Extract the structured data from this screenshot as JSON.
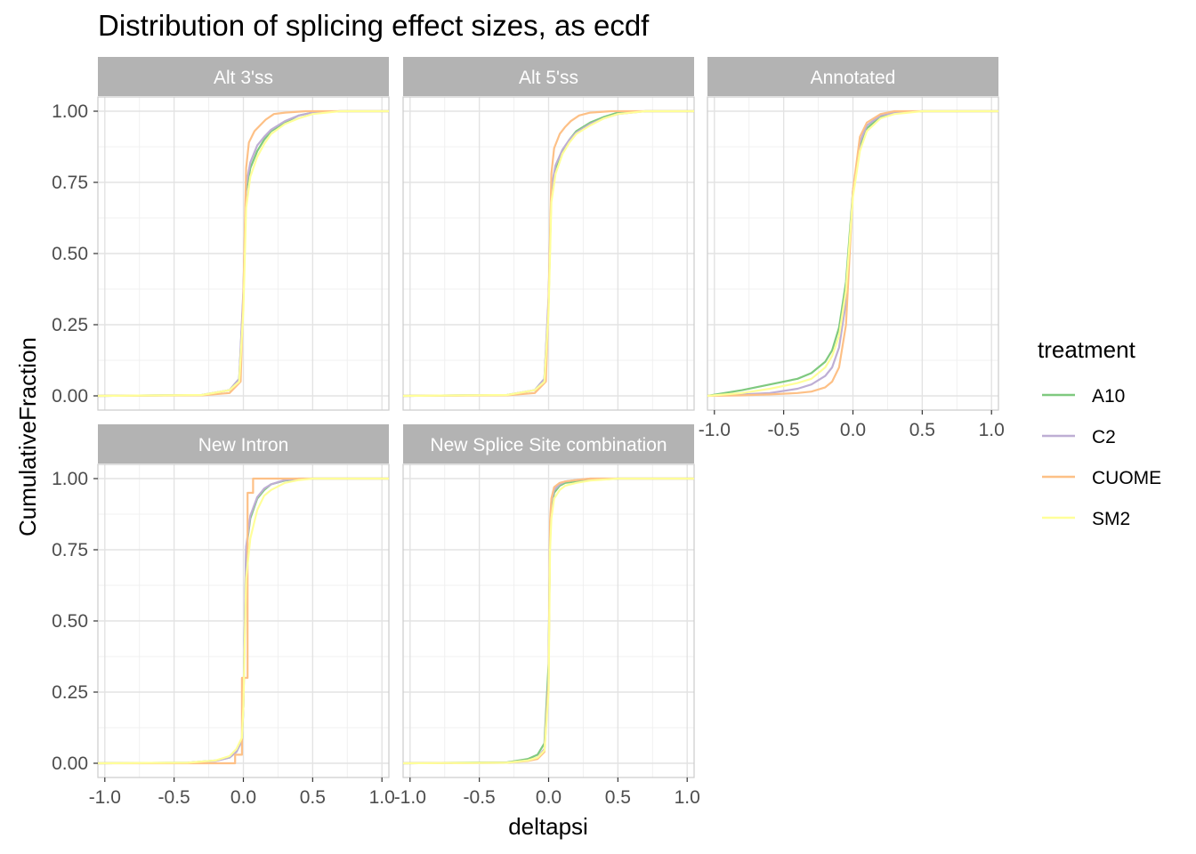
{
  "chart_data": {
    "type": "line",
    "title": "Distribution of splicing effect sizes, as ecdf",
    "xlabel": "deltapsi",
    "ylabel": "CumulativeFraction",
    "xlim": [
      -1.05,
      1.05
    ],
    "ylim": [
      -0.05,
      1.05
    ],
    "x_ticks": [
      -1.0,
      -0.5,
      0.0,
      0.5,
      1.0
    ],
    "x_tick_labels": [
      "-1.0",
      "-0.5",
      "0.0",
      "0.5",
      "1.0"
    ],
    "y_ticks": [
      0.0,
      0.25,
      0.5,
      0.75,
      1.0
    ],
    "y_tick_labels": [
      "0.00",
      "0.25",
      "0.50",
      "0.75",
      "1.00"
    ],
    "grid": true,
    "legend": {
      "title": "treatment",
      "position": "right",
      "entries": [
        {
          "name": "A10",
          "color": "#7FC97F"
        },
        {
          "name": "C2",
          "color": "#BEAED4"
        },
        {
          "name": "CUOME",
          "color": "#FDC086"
        },
        {
          "name": "SM2",
          "color": "#FFFF99"
        }
      ]
    },
    "panels": [
      {
        "label": "Alt 3'ss",
        "series": [
          {
            "name": "A10",
            "x": [
              -1.05,
              -0.3,
              -0.1,
              -0.03,
              0.0,
              0.02,
              0.05,
              0.1,
              0.15,
              0.2,
              0.3,
              0.4,
              0.5,
              0.7,
              1.05
            ],
            "y": [
              0.0,
              0.003,
              0.02,
              0.06,
              0.35,
              0.72,
              0.8,
              0.86,
              0.9,
              0.93,
              0.96,
              0.985,
              0.995,
              1.0,
              1.0
            ]
          },
          {
            "name": "C2",
            "x": [
              -1.05,
              -0.3,
              -0.1,
              -0.03,
              0.0,
              0.02,
              0.05,
              0.1,
              0.15,
              0.2,
              0.3,
              0.4,
              0.5,
              0.7,
              1.05
            ],
            "y": [
              0.0,
              0.003,
              0.02,
              0.06,
              0.37,
              0.74,
              0.82,
              0.88,
              0.91,
              0.935,
              0.965,
              0.985,
              0.995,
              1.0,
              1.0
            ]
          },
          {
            "name": "CUOME",
            "x": [
              -1.05,
              -0.3,
              -0.1,
              -0.02,
              0.0,
              0.02,
              0.04,
              0.08,
              0.12,
              0.16,
              0.22,
              0.3,
              0.45,
              0.6,
              1.05
            ],
            "y": [
              0.0,
              0.002,
              0.01,
              0.05,
              0.35,
              0.8,
              0.89,
              0.93,
              0.95,
              0.97,
              0.99,
              0.995,
              1.0,
              1.0,
              1.0
            ]
          },
          {
            "name": "SM2",
            "x": [
              -1.05,
              -0.3,
              -0.1,
              -0.03,
              0.0,
              0.02,
              0.05,
              0.1,
              0.15,
              0.2,
              0.3,
              0.4,
              0.5,
              0.7,
              1.05
            ],
            "y": [
              0.0,
              0.003,
              0.02,
              0.05,
              0.3,
              0.66,
              0.77,
              0.84,
              0.885,
              0.92,
              0.955,
              0.975,
              0.99,
              1.0,
              1.0
            ]
          }
        ]
      },
      {
        "label": "Alt 5'ss",
        "series": [
          {
            "name": "A10",
            "x": [
              -1.05,
              -0.3,
              -0.1,
              -0.03,
              0.0,
              0.02,
              0.05,
              0.1,
              0.15,
              0.2,
              0.3,
              0.4,
              0.5,
              0.7,
              1.05
            ],
            "y": [
              0.0,
              0.003,
              0.02,
              0.06,
              0.33,
              0.72,
              0.8,
              0.86,
              0.9,
              0.93,
              0.96,
              0.98,
              0.995,
              1.0,
              1.0
            ]
          },
          {
            "name": "C2",
            "x": [
              -1.05,
              -0.3,
              -0.1,
              -0.03,
              0.0,
              0.02,
              0.05,
              0.1,
              0.15,
              0.2,
              0.3,
              0.4,
              0.5,
              0.7,
              1.05
            ],
            "y": [
              0.0,
              0.003,
              0.02,
              0.06,
              0.35,
              0.73,
              0.81,
              0.865,
              0.9,
              0.925,
              0.955,
              0.975,
              0.99,
              1.0,
              1.0
            ]
          },
          {
            "name": "CUOME",
            "x": [
              -1.05,
              -0.3,
              -0.1,
              -0.02,
              0.0,
              0.02,
              0.04,
              0.08,
              0.12,
              0.16,
              0.22,
              0.3,
              0.45,
              0.6,
              1.05
            ],
            "y": [
              0.0,
              0.002,
              0.01,
              0.05,
              0.33,
              0.78,
              0.87,
              0.92,
              0.945,
              0.965,
              0.985,
              0.995,
              1.0,
              1.0,
              1.0
            ]
          },
          {
            "name": "SM2",
            "x": [
              -1.05,
              -0.3,
              -0.1,
              -0.03,
              0.0,
              0.02,
              0.05,
              0.1,
              0.15,
              0.2,
              0.3,
              0.4,
              0.5,
              0.7,
              1.05
            ],
            "y": [
              0.0,
              0.003,
              0.02,
              0.05,
              0.3,
              0.68,
              0.78,
              0.85,
              0.89,
              0.92,
              0.95,
              0.975,
              0.99,
              1.0,
              1.0
            ]
          }
        ]
      },
      {
        "label": "Annotated",
        "series": [
          {
            "name": "A10",
            "x": [
              -1.05,
              -0.8,
              -0.6,
              -0.4,
              -0.3,
              -0.2,
              -0.15,
              -0.1,
              -0.05,
              0.0,
              0.05,
              0.1,
              0.2,
              0.3,
              0.5,
              1.05
            ],
            "y": [
              0.0,
              0.02,
              0.04,
              0.06,
              0.08,
              0.12,
              0.16,
              0.24,
              0.4,
              0.72,
              0.88,
              0.94,
              0.98,
              0.995,
              1.0,
              1.0
            ]
          },
          {
            "name": "C2",
            "x": [
              -1.05,
              -0.8,
              -0.6,
              -0.4,
              -0.3,
              -0.2,
              -0.15,
              -0.1,
              -0.05,
              0.0,
              0.05,
              0.1,
              0.2,
              0.3,
              0.5,
              1.05
            ],
            "y": [
              0.0,
              0.005,
              0.01,
              0.025,
              0.04,
              0.07,
              0.1,
              0.17,
              0.33,
              0.72,
              0.89,
              0.95,
              0.985,
              0.995,
              1.0,
              1.0
            ]
          },
          {
            "name": "CUOME",
            "x": [
              -1.05,
              -0.8,
              -0.6,
              -0.4,
              -0.3,
              -0.2,
              -0.15,
              -0.1,
              -0.05,
              0.0,
              0.05,
              0.1,
              0.2,
              0.3,
              0.5,
              1.05
            ],
            "y": [
              0.0,
              0.002,
              0.005,
              0.01,
              0.015,
              0.03,
              0.05,
              0.1,
              0.25,
              0.72,
              0.91,
              0.96,
              0.99,
              1.0,
              1.0,
              1.0
            ]
          },
          {
            "name": "SM2",
            "x": [
              -1.05,
              -0.8,
              -0.6,
              -0.4,
              -0.3,
              -0.2,
              -0.15,
              -0.1,
              -0.05,
              0.0,
              0.05,
              0.1,
              0.2,
              0.3,
              0.5,
              1.05
            ],
            "y": [
              0.0,
              0.01,
              0.025,
              0.045,
              0.06,
              0.1,
              0.14,
              0.21,
              0.37,
              0.7,
              0.86,
              0.93,
              0.975,
              0.99,
              1.0,
              1.0
            ]
          }
        ]
      },
      {
        "label": "New Intron",
        "series": [
          {
            "name": "A10",
            "x": [
              -1.05,
              -0.4,
              -0.2,
              -0.1,
              -0.05,
              -0.01,
              0.0,
              0.02,
              0.05,
              0.1,
              0.15,
              0.2,
              0.3,
              0.4,
              0.5,
              1.05
            ],
            "y": [
              0.0,
              0.002,
              0.01,
              0.02,
              0.04,
              0.08,
              0.2,
              0.75,
              0.86,
              0.93,
              0.96,
              0.98,
              0.993,
              0.998,
              1.0,
              1.0
            ]
          },
          {
            "name": "C2",
            "x": [
              -1.05,
              -0.4,
              -0.2,
              -0.1,
              -0.05,
              -0.01,
              0.0,
              0.02,
              0.05,
              0.1,
              0.15,
              0.2,
              0.3,
              0.4,
              0.5,
              1.05
            ],
            "y": [
              0.0,
              0.002,
              0.008,
              0.02,
              0.04,
              0.08,
              0.2,
              0.76,
              0.87,
              0.935,
              0.965,
              0.98,
              0.995,
              1.0,
              1.0,
              1.0
            ]
          },
          {
            "name": "CUOME",
            "x": [
              -1.05,
              -0.06,
              -0.06,
              -0.01,
              -0.01,
              0.03,
              0.03,
              0.07,
              0.07,
              1.05
            ],
            "y": [
              0.0,
              0.0,
              0.03,
              0.03,
              0.3,
              0.3,
              0.95,
              0.95,
              1.0,
              1.0
            ]
          },
          {
            "name": "SM2",
            "x": [
              -1.05,
              -0.4,
              -0.2,
              -0.1,
              -0.05,
              -0.01,
              0.0,
              0.02,
              0.05,
              0.1,
              0.15,
              0.2,
              0.3,
              0.4,
              0.5,
              1.05
            ],
            "y": [
              0.0,
              0.002,
              0.01,
              0.025,
              0.05,
              0.09,
              0.2,
              0.65,
              0.79,
              0.89,
              0.94,
              0.96,
              0.985,
              0.995,
              1.0,
              1.0
            ]
          }
        ]
      },
      {
        "label": "New Splice Site combination",
        "series": [
          {
            "name": "A10",
            "x": [
              -1.05,
              -0.3,
              -0.15,
              -0.08,
              -0.03,
              0.0,
              0.01,
              0.02,
              0.04,
              0.08,
              0.12,
              0.2,
              0.3,
              0.5,
              1.05
            ],
            "y": [
              0.0,
              0.003,
              0.015,
              0.03,
              0.07,
              0.35,
              0.8,
              0.9,
              0.95,
              0.975,
              0.985,
              0.99,
              0.995,
              1.0,
              1.0
            ]
          },
          {
            "name": "C2",
            "x": [
              -1.05,
              -0.3,
              -0.15,
              -0.08,
              -0.03,
              0.0,
              0.01,
              0.02,
              0.04,
              0.08,
              0.12,
              0.2,
              0.3,
              0.5,
              1.05
            ],
            "y": [
              0.0,
              0.002,
              0.01,
              0.02,
              0.05,
              0.3,
              0.82,
              0.92,
              0.96,
              0.98,
              0.99,
              0.995,
              1.0,
              1.0,
              1.0
            ]
          },
          {
            "name": "CUOME",
            "x": [
              -1.05,
              -0.3,
              -0.15,
              -0.08,
              -0.03,
              0.0,
              0.01,
              0.02,
              0.04,
              0.08,
              0.12,
              0.2,
              0.3,
              0.5,
              1.05
            ],
            "y": [
              0.0,
              0.002,
              0.008,
              0.015,
              0.04,
              0.28,
              0.85,
              0.93,
              0.97,
              0.985,
              0.99,
              0.995,
              1.0,
              1.0,
              1.0
            ]
          },
          {
            "name": "SM2",
            "x": [
              -1.05,
              -0.3,
              -0.15,
              -0.08,
              -0.03,
              0.0,
              0.01,
              0.02,
              0.04,
              0.08,
              0.12,
              0.2,
              0.3,
              0.5,
              1.05
            ],
            "y": [
              0.0,
              0.002,
              0.01,
              0.02,
              0.045,
              0.25,
              0.75,
              0.86,
              0.93,
              0.96,
              0.975,
              0.985,
              0.993,
              1.0,
              1.0
            ]
          }
        ]
      }
    ]
  }
}
